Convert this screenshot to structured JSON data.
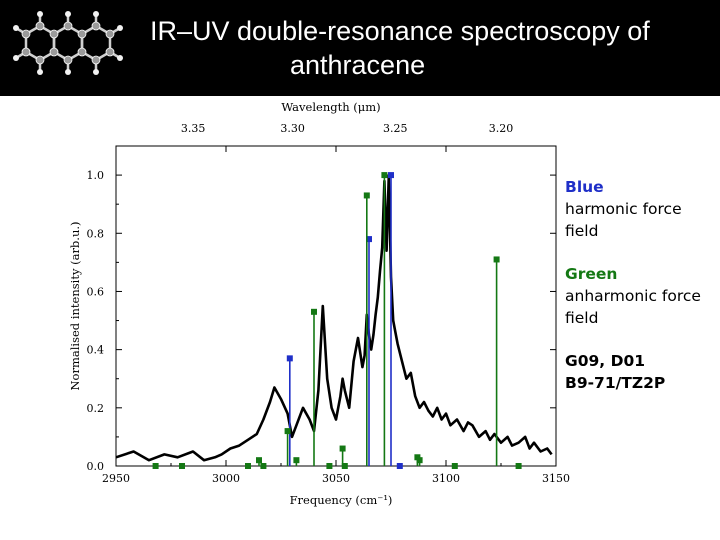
{
  "header": {
    "title_line1": "IR–UV double-resonance spectroscopy of",
    "title_line2": "anthracene",
    "background": "#000000",
    "icon": "anthracene-molecule-icon"
  },
  "legend": {
    "blue_heading": "Blue",
    "blue_text_1": "harmonic force",
    "blue_text_2": "field",
    "green_heading": "Green",
    "green_text_1": "anharmonic force",
    "green_text_2": "field",
    "ref_line1": "G09, D01",
    "ref_line2": "B9-71/TZ2P"
  },
  "colors": {
    "blue": "#1f2fc8",
    "green": "#147814",
    "experiment": "#000000"
  },
  "chart_data": {
    "type": "line",
    "xlabel": "Frequency (cm⁻¹)",
    "ylabel": "Normalised intensity (arb.u.)",
    "top_axis_label": "Wavelength (μm)",
    "xlim": [
      2950,
      3150
    ],
    "ylim": [
      0,
      1.1
    ],
    "x_ticks": [
      "2950",
      "3000",
      "3050",
      "3100",
      "3150"
    ],
    "y_ticks": [
      "0.0",
      "0.2",
      "0.4",
      "0.6",
      "0.8",
      "1.0"
    ],
    "top_ticks": [
      "3.35",
      "3.30",
      "3.25",
      "3.20"
    ],
    "grid": false,
    "series": [
      {
        "style": "line",
        "color": "#000000",
        "x": [
          2950,
          2958,
          2965,
          2972,
          2978,
          2985,
          2990,
          2995,
          2998,
          3002,
          3006,
          3010,
          3014,
          3017,
          3020,
          3022,
          3025,
          3028,
          3030,
          3032,
          3035,
          3038,
          3040,
          3042,
          3044,
          3046,
          3048,
          3050,
          3052,
          3053,
          3054,
          3056,
          3058,
          3060,
          3062,
          3063,
          3064,
          3065,
          3066,
          3067,
          3068,
          3069,
          3070,
          3071,
          3072,
          3073,
          3074,
          3075,
          3076,
          3077,
          3078,
          3080,
          3082,
          3084,
          3086,
          3088,
          3090,
          3092,
          3094,
          3096,
          3098,
          3100,
          3102,
          3105,
          3108,
          3110,
          3112,
          3115,
          3118,
          3120,
          3122,
          3125,
          3128,
          3130,
          3133,
          3136,
          3138,
          3140,
          3143,
          3146,
          3148
        ],
        "y": [
          0.03,
          0.05,
          0.02,
          0.04,
          0.03,
          0.05,
          0.02,
          0.03,
          0.04,
          0.06,
          0.07,
          0.09,
          0.11,
          0.16,
          0.22,
          0.27,
          0.23,
          0.18,
          0.1,
          0.14,
          0.2,
          0.16,
          0.12,
          0.26,
          0.55,
          0.3,
          0.2,
          0.16,
          0.24,
          0.3,
          0.26,
          0.2,
          0.36,
          0.44,
          0.34,
          0.38,
          0.52,
          0.45,
          0.4,
          0.45,
          0.52,
          0.58,
          0.67,
          0.75,
          0.98,
          0.74,
          1.0,
          0.65,
          0.5,
          0.46,
          0.42,
          0.36,
          0.3,
          0.32,
          0.24,
          0.2,
          0.22,
          0.19,
          0.17,
          0.2,
          0.16,
          0.18,
          0.14,
          0.16,
          0.12,
          0.15,
          0.14,
          0.1,
          0.12,
          0.09,
          0.11,
          0.08,
          0.1,
          0.07,
          0.08,
          0.1,
          0.06,
          0.08,
          0.05,
          0.06,
          0.04
        ]
      },
      {
        "style": "stick",
        "color": "#1f2fc8",
        "name": "Blue",
        "x": [
          3029,
          3065,
          3075,
          3079
        ],
        "y": [
          0.37,
          0.78,
          1.0,
          0.0
        ]
      },
      {
        "style": "stick",
        "color": "#147814",
        "name": "Green",
        "x": [
          2968,
          2980,
          3010,
          3015,
          3017,
          3028,
          3032,
          3040,
          3047,
          3053,
          3054,
          3064,
          3072,
          3087,
          3088,
          3104,
          3123,
          3133
        ],
        "y": [
          0.0,
          0.0,
          0.0,
          0.02,
          0.0,
          0.12,
          0.02,
          0.53,
          0.0,
          0.06,
          0.0,
          0.93,
          1.0,
          0.03,
          0.02,
          0.0,
          0.71,
          0.0
        ]
      }
    ]
  }
}
